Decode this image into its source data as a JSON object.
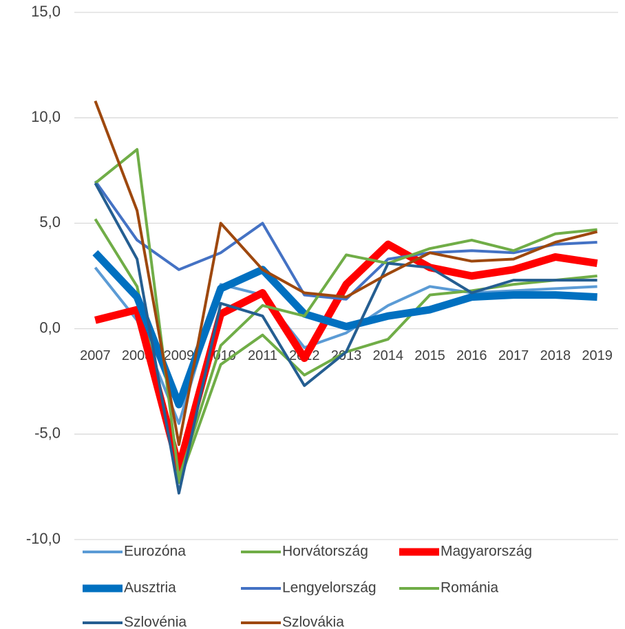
{
  "chart_data": {
    "type": "line",
    "categories": [
      "2007",
      "2008",
      "2009",
      "2010",
      "2011",
      "2012",
      "2013",
      "2014",
      "2015",
      "2016",
      "2017",
      "2018",
      "2019"
    ],
    "ylim": [
      -10,
      15
    ],
    "yticks": [
      {
        "value": -10,
        "label": "-10,0"
      },
      {
        "value": -5,
        "label": "-5,0"
      },
      {
        "value": 0,
        "label": "0,0"
      },
      {
        "value": 5,
        "label": "5,0"
      },
      {
        "value": 10,
        "label": "10,0"
      },
      {
        "value": 15,
        "label": "15,0"
      }
    ],
    "grid": true,
    "legend": "bottom",
    "series": [
      {
        "name": "Eurozóna",
        "color": "#5b9bd5",
        "line_width": 4,
        "values": [
          2.9,
          0.4,
          -4.5,
          2.1,
          1.6,
          -0.9,
          -0.2,
          1.1,
          2.0,
          1.7,
          1.8,
          1.9,
          2.0
        ]
      },
      {
        "name": "Horvátország",
        "color": "#70ad47",
        "line_width": 4,
        "values": [
          5.2,
          2.0,
          -7.3,
          -1.7,
          -0.3,
          -2.2,
          -1.1,
          -0.5,
          1.6,
          1.8,
          2.1,
          2.3,
          2.5
        ]
      },
      {
        "name": "Magyarország",
        "color": "#ff0000",
        "line_width": 11,
        "values": [
          0.4,
          0.9,
          -6.6,
          0.7,
          1.7,
          -1.4,
          2.1,
          4.0,
          2.9,
          2.5,
          2.8,
          3.4,
          3.1
        ]
      },
      {
        "name": "Ausztria",
        "color": "#0070c0",
        "line_width": 11,
        "values": [
          3.6,
          1.5,
          -3.6,
          1.9,
          2.8,
          0.7,
          0.1,
          0.6,
          0.9,
          1.5,
          1.6,
          1.6,
          1.5
        ]
      },
      {
        "name": "Lengyelország",
        "color": "#4472c4",
        "line_width": 4,
        "values": [
          7.0,
          4.2,
          2.8,
          3.6,
          5.0,
          1.6,
          1.4,
          3.3,
          3.6,
          3.7,
          3.6,
          4.0,
          4.1
        ]
      },
      {
        "name": "Románia",
        "color": "#70ad47",
        "line_width": 4,
        "values": [
          6.9,
          8.5,
          -7.1,
          -0.8,
          1.1,
          0.6,
          3.5,
          3.1,
          3.8,
          4.2,
          3.7,
          4.5,
          4.7
        ]
      },
      {
        "name": "Szlovénia",
        "color": "#255e91",
        "line_width": 4,
        "values": [
          6.9,
          3.3,
          -7.8,
          1.2,
          0.6,
          -2.7,
          -1.1,
          3.1,
          2.9,
          1.7,
          2.3,
          2.3,
          2.3
        ]
      },
      {
        "name": "Szlovákia",
        "color": "#9e480e",
        "line_width": 4,
        "values": [
          10.8,
          5.6,
          -5.5,
          5.0,
          2.8,
          1.7,
          1.5,
          2.6,
          3.6,
          3.2,
          3.3,
          4.1,
          4.6
        ]
      }
    ]
  }
}
